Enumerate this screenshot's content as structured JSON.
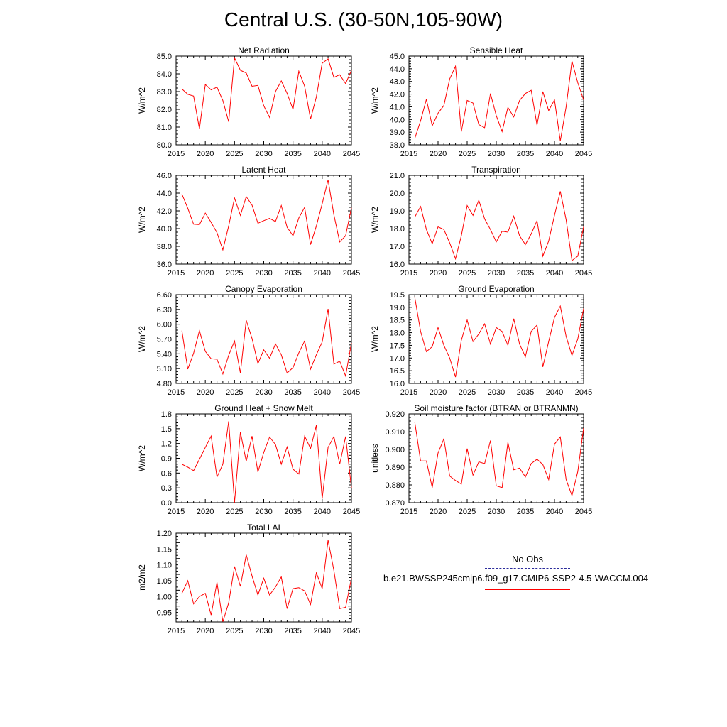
{
  "page": {
    "title": "Central U.S. (30-50N,105-90W)"
  },
  "legend": {
    "obs_label": "No Obs",
    "obs_color": "#2a2a9a",
    "run_label": "b.e21.BWSSP245cmip6.f09_g17.CMIP6-SSP2-4.5-WACCM.004",
    "run_color": "#ff0000"
  },
  "chart_data": [
    {
      "type": "line",
      "title": "Net Radiation",
      "ylabel": "W/m^2",
      "xlim": [
        2015,
        2045
      ],
      "ylim": [
        80.0,
        85.0
      ],
      "x_ticks": [
        2015,
        2020,
        2025,
        2030,
        2035,
        2040,
        2045
      ],
      "y_ticks": [
        "80.0",
        "81.0",
        "82.0",
        "83.0",
        "84.0",
        "85.0"
      ],
      "y_tick_values": [
        80.0,
        81.0,
        82.0,
        83.0,
        84.0,
        85.0
      ],
      "series": [
        {
          "color": "#ff0000",
          "x": [
            2016,
            2017,
            2018,
            2019,
            2020,
            2021,
            2022,
            2023,
            2024,
            2025,
            2026,
            2027,
            2028,
            2029,
            2030,
            2031,
            2032,
            2033,
            2034,
            2035,
            2036,
            2037,
            2038,
            2039,
            2040,
            2041,
            2042,
            2043,
            2044,
            2045
          ],
          "y": [
            83.15,
            82.85,
            82.75,
            80.9,
            83.4,
            83.1,
            83.25,
            82.5,
            81.3,
            84.9,
            84.2,
            84.05,
            83.3,
            83.35,
            82.2,
            81.55,
            83.0,
            83.6,
            82.9,
            82.0,
            84.15,
            83.3,
            81.45,
            82.7,
            84.6,
            84.85,
            83.8,
            83.95,
            83.45,
            84.2
          ]
        }
      ]
    },
    {
      "type": "line",
      "title": "Sensible Heat",
      "ylabel": "W/m^2",
      "xlim": [
        2015,
        2045
      ],
      "ylim": [
        38.0,
        45.0
      ],
      "x_ticks": [
        2015,
        2020,
        2025,
        2030,
        2035,
        2040,
        2045
      ],
      "y_ticks": [
        "38.0",
        "39.0",
        "40.0",
        "41.0",
        "42.0",
        "43.0",
        "44.0",
        "45.0"
      ],
      "y_tick_values": [
        38.0,
        39.0,
        40.0,
        41.0,
        42.0,
        43.0,
        44.0,
        45.0
      ],
      "series": [
        {
          "color": "#ff0000",
          "x": [
            2016,
            2017,
            2018,
            2019,
            2020,
            2021,
            2022,
            2023,
            2024,
            2025,
            2026,
            2027,
            2028,
            2029,
            2030,
            2031,
            2032,
            2033,
            2034,
            2035,
            2036,
            2037,
            2038,
            2039,
            2040,
            2041,
            2042,
            2043,
            2044,
            2045
          ],
          "y": [
            38.5,
            39.9,
            41.6,
            39.5,
            40.5,
            41.1,
            43.2,
            44.2,
            39.05,
            41.5,
            41.3,
            39.6,
            39.35,
            42.05,
            40.3,
            39.05,
            40.95,
            40.2,
            41.5,
            42.05,
            42.3,
            39.55,
            42.2,
            40.7,
            41.55,
            38.3,
            41.0,
            44.6,
            42.9,
            41.55
          ]
        }
      ]
    },
    {
      "type": "line",
      "title": "Latent Heat",
      "ylabel": "W/m^2",
      "xlim": [
        2015,
        2045
      ],
      "ylim": [
        36.0,
        46.0
      ],
      "x_ticks": [
        2015,
        2020,
        2025,
        2030,
        2035,
        2040,
        2045
      ],
      "y_ticks": [
        "36.0",
        "38.0",
        "40.0",
        "42.0",
        "44.0",
        "46.0"
      ],
      "y_tick_values": [
        36.0,
        38.0,
        40.0,
        42.0,
        44.0,
        46.0
      ],
      "series": [
        {
          "color": "#ff0000",
          "x": [
            2016,
            2017,
            2018,
            2019,
            2020,
            2021,
            2022,
            2023,
            2024,
            2025,
            2026,
            2027,
            2028,
            2029,
            2030,
            2031,
            2032,
            2033,
            2034,
            2035,
            2036,
            2037,
            2038,
            2039,
            2040,
            2041,
            2042,
            2043,
            2044,
            2045
          ],
          "y": [
            43.9,
            42.3,
            40.5,
            40.45,
            41.75,
            40.7,
            39.55,
            37.6,
            40.3,
            43.45,
            41.5,
            43.6,
            42.65,
            40.6,
            40.9,
            41.15,
            40.8,
            42.6,
            40.15,
            39.2,
            41.2,
            42.4,
            38.2,
            40.3,
            42.8,
            45.5,
            41.55,
            38.5,
            39.2,
            42.35
          ]
        }
      ]
    },
    {
      "type": "line",
      "title": "Transpiration",
      "ylabel": "W/m^2",
      "xlim": [
        2015,
        2045
      ],
      "ylim": [
        16.0,
        21.0
      ],
      "x_ticks": [
        2015,
        2020,
        2025,
        2030,
        2035,
        2040,
        2045
      ],
      "y_ticks": [
        "16.0",
        "17.0",
        "18.0",
        "19.0",
        "20.0",
        "21.0"
      ],
      "y_tick_values": [
        16.0,
        17.0,
        18.0,
        19.0,
        20.0,
        21.0
      ],
      "series": [
        {
          "color": "#ff0000",
          "x": [
            2016,
            2017,
            2018,
            2019,
            2020,
            2021,
            2022,
            2023,
            2024,
            2025,
            2026,
            2027,
            2028,
            2029,
            2030,
            2031,
            2032,
            2033,
            2034,
            2035,
            2036,
            2037,
            2038,
            2039,
            2040,
            2041,
            2042,
            2043,
            2044,
            2045
          ],
          "y": [
            18.65,
            19.25,
            17.95,
            17.15,
            18.1,
            17.95,
            17.2,
            16.3,
            17.6,
            19.3,
            18.75,
            19.6,
            18.55,
            17.95,
            17.25,
            17.85,
            17.8,
            18.7,
            17.6,
            17.1,
            17.7,
            18.45,
            16.45,
            17.3,
            18.75,
            20.1,
            18.5,
            16.2,
            16.45,
            18.1
          ]
        }
      ]
    },
    {
      "type": "line",
      "title": "Canopy Evaporation",
      "ylabel": "W/m^2",
      "xlim": [
        2015,
        2045
      ],
      "ylim": [
        4.8,
        6.6
      ],
      "x_ticks": [
        2015,
        2020,
        2025,
        2030,
        2035,
        2040,
        2045
      ],
      "y_ticks": [
        "4.80",
        "5.10",
        "5.40",
        "5.70",
        "6.00",
        "6.30",
        "6.60"
      ],
      "y_tick_values": [
        4.8,
        5.1,
        5.4,
        5.7,
        6.0,
        6.3,
        6.6
      ],
      "series": [
        {
          "color": "#ff0000",
          "x": [
            2016,
            2017,
            2018,
            2019,
            2020,
            2021,
            2022,
            2023,
            2024,
            2025,
            2026,
            2027,
            2028,
            2029,
            2030,
            2031,
            2032,
            2033,
            2034,
            2035,
            2036,
            2037,
            2038,
            2039,
            2040,
            2041,
            2042,
            2043,
            2044,
            2045
          ],
          "y": [
            5.87,
            5.09,
            5.41,
            5.87,
            5.45,
            5.3,
            5.29,
            4.99,
            5.37,
            5.66,
            5.01,
            6.08,
            5.71,
            5.2,
            5.48,
            5.31,
            5.6,
            5.38,
            5.01,
            5.12,
            5.42,
            5.66,
            5.09,
            5.38,
            5.64,
            6.31,
            5.19,
            5.25,
            4.95,
            5.62
          ]
        }
      ]
    },
    {
      "type": "line",
      "title": "Ground Evaporation",
      "ylabel": "W/m^2",
      "xlim": [
        2015,
        2045
      ],
      "ylim": [
        16.0,
        19.5
      ],
      "x_ticks": [
        2015,
        2020,
        2025,
        2030,
        2035,
        2040,
        2045
      ],
      "y_ticks": [
        "16.0",
        "16.5",
        "17.0",
        "17.5",
        "18.0",
        "18.5",
        "19.0",
        "19.5"
      ],
      "y_tick_values": [
        16.0,
        16.5,
        17.0,
        17.5,
        18.0,
        18.5,
        19.0,
        19.5
      ],
      "series": [
        {
          "color": "#ff0000",
          "x": [
            2016,
            2017,
            2018,
            2019,
            2020,
            2021,
            2022,
            2023,
            2024,
            2025,
            2026,
            2027,
            2028,
            2029,
            2030,
            2031,
            2032,
            2033,
            2034,
            2035,
            2036,
            2037,
            2038,
            2039,
            2040,
            2041,
            2042,
            2043,
            2044,
            2045
          ],
          "y": [
            19.4,
            18.05,
            17.25,
            17.45,
            18.2,
            17.5,
            17.0,
            16.25,
            17.7,
            18.5,
            17.65,
            17.95,
            18.35,
            17.55,
            18.2,
            18.05,
            17.5,
            18.55,
            17.55,
            17.05,
            18.05,
            18.3,
            16.65,
            17.65,
            18.6,
            19.05,
            17.85,
            17.1,
            17.75,
            18.95
          ]
        }
      ]
    },
    {
      "type": "line",
      "title": "Ground Heat + Snow Melt",
      "ylabel": "W/m^2",
      "xlim": [
        2015,
        2045
      ],
      "ylim": [
        0.0,
        1.8
      ],
      "x_ticks": [
        2015,
        2020,
        2025,
        2030,
        2035,
        2040,
        2045
      ],
      "y_ticks": [
        "0.0",
        "0.3",
        "0.6",
        "0.9",
        "1.2",
        "1.5",
        "1.8"
      ],
      "y_tick_values": [
        0.0,
        0.3,
        0.6,
        0.9,
        1.2,
        1.5,
        1.8
      ],
      "series": [
        {
          "color": "#ff0000",
          "x": [
            2016,
            2017,
            2018,
            2019,
            2020,
            2021,
            2022,
            2023,
            2024,
            2025,
            2026,
            2027,
            2028,
            2029,
            2030,
            2031,
            2032,
            2033,
            2034,
            2035,
            2036,
            2037,
            2038,
            2039,
            2040,
            2041,
            2042,
            2043,
            2044,
            2045
          ],
          "y": [
            0.78,
            0.72,
            0.65,
            0.88,
            1.12,
            1.35,
            0.52,
            0.78,
            1.65,
            0.0,
            1.43,
            0.84,
            1.35,
            0.62,
            1.02,
            1.33,
            1.18,
            0.78,
            1.13,
            0.68,
            0.58,
            1.35,
            1.1,
            1.57,
            0.08,
            1.12,
            1.34,
            0.78,
            1.34,
            0.3
          ]
        }
      ]
    },
    {
      "type": "line",
      "title": "Soil moisture factor (BTRAN or BTRANMN)",
      "ylabel": "unitless",
      "xlim": [
        2015,
        2045
      ],
      "ylim": [
        0.87,
        0.92
      ],
      "x_ticks": [
        2015,
        2020,
        2025,
        2030,
        2035,
        2040,
        2045
      ],
      "y_ticks": [
        "0.870",
        "0.880",
        "0.890",
        "0.900",
        "0.910",
        "0.920"
      ],
      "y_tick_values": [
        0.87,
        0.88,
        0.89,
        0.9,
        0.91,
        0.92
      ],
      "series": [
        {
          "color": "#ff0000",
          "x": [
            2016,
            2017,
            2018,
            2019,
            2020,
            2021,
            2022,
            2023,
            2024,
            2025,
            2026,
            2027,
            2028,
            2029,
            2030,
            2031,
            2032,
            2033,
            2034,
            2035,
            2036,
            2037,
            2038,
            2039,
            2040,
            2041,
            2042,
            2043,
            2044,
            2045
          ],
          "y": [
            0.9155,
            0.8935,
            0.8935,
            0.8785,
            0.898,
            0.906,
            0.885,
            0.8825,
            0.8805,
            0.9005,
            0.8855,
            0.893,
            0.892,
            0.905,
            0.8795,
            0.8785,
            0.904,
            0.8885,
            0.8895,
            0.8845,
            0.892,
            0.8945,
            0.8915,
            0.883,
            0.903,
            0.907,
            0.883,
            0.874,
            0.8875,
            0.912
          ]
        }
      ]
    },
    {
      "type": "line",
      "title": "Total LAI",
      "ylabel": "m2/m2",
      "xlim": [
        2015,
        2045
      ],
      "ylim": [
        0.92,
        1.2
      ],
      "x_ticks": [
        2015,
        2020,
        2025,
        2030,
        2035,
        2040,
        2045
      ],
      "y_ticks": [
        "0.95",
        "1.00",
        "1.05",
        "1.10",
        "1.15",
        "1.20"
      ],
      "y_tick_values": [
        0.95,
        1.0,
        1.05,
        1.1,
        1.15,
        1.2
      ],
      "series": [
        {
          "color": "#ff0000",
          "x": [
            2016,
            2017,
            2018,
            2019,
            2020,
            2021,
            2022,
            2023,
            2024,
            2025,
            2026,
            2027,
            2028,
            2029,
            2030,
            2031,
            2032,
            2033,
            2034,
            2035,
            2036,
            2037,
            2038,
            2039,
            2040,
            2041,
            2042,
            2043,
            2044,
            2045
          ],
          "y": [
            1.01,
            1.05,
            0.977,
            1.0,
            1.01,
            0.942,
            1.045,
            0.921,
            0.98,
            1.095,
            1.032,
            1.132,
            1.065,
            1.005,
            1.058,
            1.005,
            1.03,
            1.062,
            0.962,
            1.025,
            1.028,
            1.018,
            0.975,
            1.075,
            1.025,
            1.178,
            1.082,
            0.962,
            0.966,
            1.058
          ]
        }
      ]
    }
  ]
}
